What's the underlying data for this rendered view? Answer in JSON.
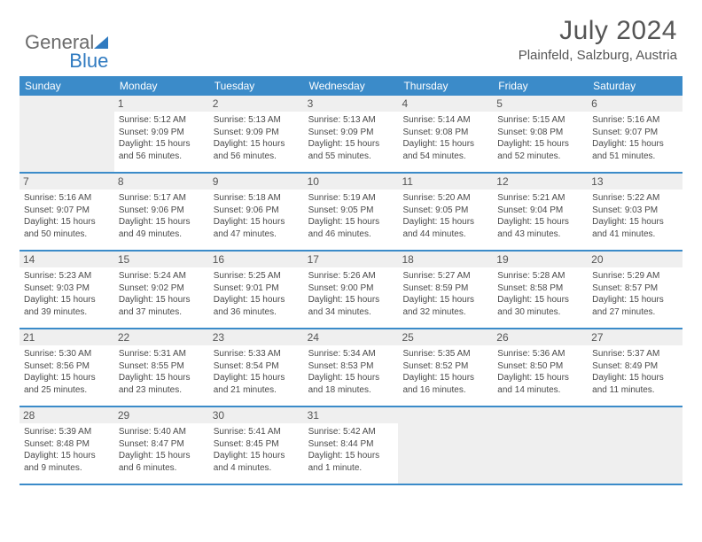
{
  "logo": {
    "text1": "General",
    "text2": "Blue"
  },
  "title": "July 2024",
  "location": "Plainfeld, Salzburg, Austria",
  "colors": {
    "header_bg": "#3b8bc9",
    "header_text": "#ffffff",
    "border": "#3b8bc9",
    "daynum_bg": "#efefef",
    "body_text": "#4a4a4a",
    "title_text": "#555555"
  },
  "weekdays": [
    "Sunday",
    "Monday",
    "Tuesday",
    "Wednesday",
    "Thursday",
    "Friday",
    "Saturday"
  ],
  "weeks": [
    [
      null,
      {
        "n": "1",
        "sr": "5:12 AM",
        "ss": "9:09 PM",
        "dl": "15 hours and 56 minutes."
      },
      {
        "n": "2",
        "sr": "5:13 AM",
        "ss": "9:09 PM",
        "dl": "15 hours and 56 minutes."
      },
      {
        "n": "3",
        "sr": "5:13 AM",
        "ss": "9:09 PM",
        "dl": "15 hours and 55 minutes."
      },
      {
        "n": "4",
        "sr": "5:14 AM",
        "ss": "9:08 PM",
        "dl": "15 hours and 54 minutes."
      },
      {
        "n": "5",
        "sr": "5:15 AM",
        "ss": "9:08 PM",
        "dl": "15 hours and 52 minutes."
      },
      {
        "n": "6",
        "sr": "5:16 AM",
        "ss": "9:07 PM",
        "dl": "15 hours and 51 minutes."
      }
    ],
    [
      {
        "n": "7",
        "sr": "5:16 AM",
        "ss": "9:07 PM",
        "dl": "15 hours and 50 minutes."
      },
      {
        "n": "8",
        "sr": "5:17 AM",
        "ss": "9:06 PM",
        "dl": "15 hours and 49 minutes."
      },
      {
        "n": "9",
        "sr": "5:18 AM",
        "ss": "9:06 PM",
        "dl": "15 hours and 47 minutes."
      },
      {
        "n": "10",
        "sr": "5:19 AM",
        "ss": "9:05 PM",
        "dl": "15 hours and 46 minutes."
      },
      {
        "n": "11",
        "sr": "5:20 AM",
        "ss": "9:05 PM",
        "dl": "15 hours and 44 minutes."
      },
      {
        "n": "12",
        "sr": "5:21 AM",
        "ss": "9:04 PM",
        "dl": "15 hours and 43 minutes."
      },
      {
        "n": "13",
        "sr": "5:22 AM",
        "ss": "9:03 PM",
        "dl": "15 hours and 41 minutes."
      }
    ],
    [
      {
        "n": "14",
        "sr": "5:23 AM",
        "ss": "9:03 PM",
        "dl": "15 hours and 39 minutes."
      },
      {
        "n": "15",
        "sr": "5:24 AM",
        "ss": "9:02 PM",
        "dl": "15 hours and 37 minutes."
      },
      {
        "n": "16",
        "sr": "5:25 AM",
        "ss": "9:01 PM",
        "dl": "15 hours and 36 minutes."
      },
      {
        "n": "17",
        "sr": "5:26 AM",
        "ss": "9:00 PM",
        "dl": "15 hours and 34 minutes."
      },
      {
        "n": "18",
        "sr": "5:27 AM",
        "ss": "8:59 PM",
        "dl": "15 hours and 32 minutes."
      },
      {
        "n": "19",
        "sr": "5:28 AM",
        "ss": "8:58 PM",
        "dl": "15 hours and 30 minutes."
      },
      {
        "n": "20",
        "sr": "5:29 AM",
        "ss": "8:57 PM",
        "dl": "15 hours and 27 minutes."
      }
    ],
    [
      {
        "n": "21",
        "sr": "5:30 AM",
        "ss": "8:56 PM",
        "dl": "15 hours and 25 minutes."
      },
      {
        "n": "22",
        "sr": "5:31 AM",
        "ss": "8:55 PM",
        "dl": "15 hours and 23 minutes."
      },
      {
        "n": "23",
        "sr": "5:33 AM",
        "ss": "8:54 PM",
        "dl": "15 hours and 21 minutes."
      },
      {
        "n": "24",
        "sr": "5:34 AM",
        "ss": "8:53 PM",
        "dl": "15 hours and 18 minutes."
      },
      {
        "n": "25",
        "sr": "5:35 AM",
        "ss": "8:52 PM",
        "dl": "15 hours and 16 minutes."
      },
      {
        "n": "26",
        "sr": "5:36 AM",
        "ss": "8:50 PM",
        "dl": "15 hours and 14 minutes."
      },
      {
        "n": "27",
        "sr": "5:37 AM",
        "ss": "8:49 PM",
        "dl": "15 hours and 11 minutes."
      }
    ],
    [
      {
        "n": "28",
        "sr": "5:39 AM",
        "ss": "8:48 PM",
        "dl": "15 hours and 9 minutes."
      },
      {
        "n": "29",
        "sr": "5:40 AM",
        "ss": "8:47 PM",
        "dl": "15 hours and 6 minutes."
      },
      {
        "n": "30",
        "sr": "5:41 AM",
        "ss": "8:45 PM",
        "dl": "15 hours and 4 minutes."
      },
      {
        "n": "31",
        "sr": "5:42 AM",
        "ss": "8:44 PM",
        "dl": "15 hours and 1 minute."
      },
      null,
      null,
      null
    ]
  ],
  "labels": {
    "sunrise": "Sunrise:",
    "sunset": "Sunset:",
    "daylight": "Daylight:"
  }
}
